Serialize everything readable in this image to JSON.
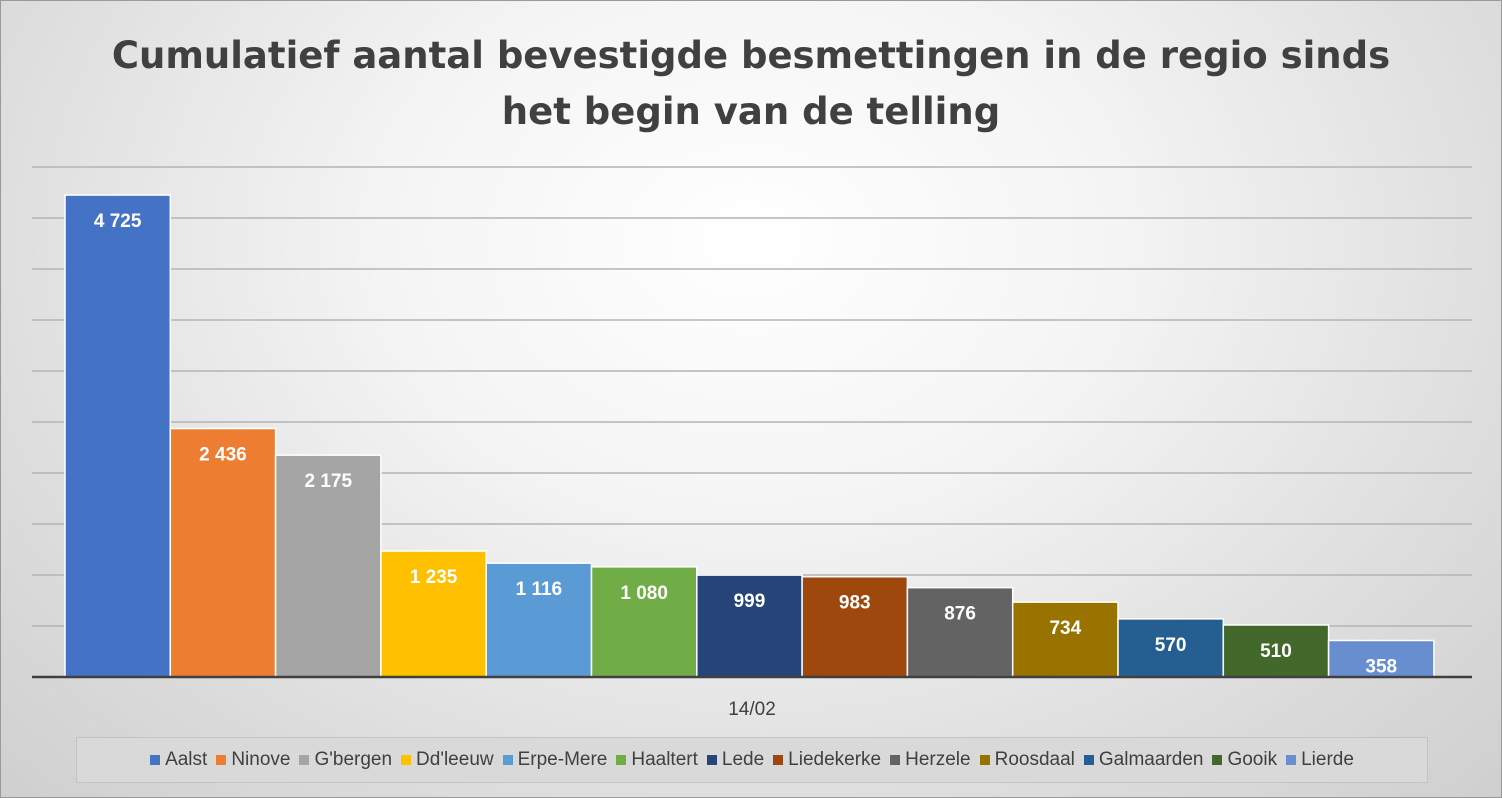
{
  "chart_data": {
    "type": "bar",
    "title": "Cumulatief aantal bevestigde besmettingen in de regio sinds het begin van de telling",
    "title_lines": [
      "Cumulatief aantal bevestigde besmettingen in de regio sinds",
      "het begin van de telling"
    ],
    "categories": [
      "14/02"
    ],
    "xlabel": "",
    "ylabel": "",
    "ylim": [
      0,
      5000
    ],
    "grid": true,
    "legend_position": "bottom",
    "series": [
      {
        "name": "Aalst",
        "values": [
          4725
        ],
        "label": "4 725",
        "color": "#4472c4"
      },
      {
        "name": "Ninove",
        "values": [
          2436
        ],
        "label": "2 436",
        "color": "#ed7d31"
      },
      {
        "name": "G'bergen",
        "values": [
          2175
        ],
        "label": "2 175",
        "color": "#a5a5a5"
      },
      {
        "name": "Dd'leeuw",
        "values": [
          1235
        ],
        "label": "1 235",
        "color": "#ffc000"
      },
      {
        "name": "Erpe-Mere",
        "values": [
          1116
        ],
        "label": "1 116",
        "color": "#5b9bd5"
      },
      {
        "name": "Haaltert",
        "values": [
          1080
        ],
        "label": "1 080",
        "color": "#70ad47"
      },
      {
        "name": "Lede",
        "values": [
          999
        ],
        "label": "999",
        "color": "#264478"
      },
      {
        "name": "Liedekerke",
        "values": [
          983
        ],
        "label": "983",
        "color": "#9e480e"
      },
      {
        "name": "Herzele",
        "values": [
          876
        ],
        "label": "876",
        "color": "#636363"
      },
      {
        "name": "Roosdaal",
        "values": [
          734
        ],
        "label": "734",
        "color": "#997300"
      },
      {
        "name": "Galmaarden",
        "values": [
          570
        ],
        "label": "570",
        "color": "#255e91"
      },
      {
        "name": "Gooik",
        "values": [
          510
        ],
        "label": "510",
        "color": "#43682b"
      },
      {
        "name": "Lierde",
        "values": [
          358
        ],
        "label": "358",
        "color": "#698ed0"
      }
    ]
  }
}
